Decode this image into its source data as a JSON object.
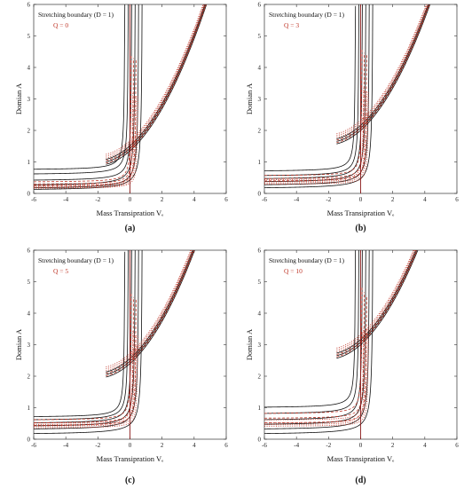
{
  "chart_data": [
    {
      "type": "line",
      "panel_label": "(a)",
      "annotation": "Stretching boundary (D = 1)",
      "q_label": "Q = 0",
      "xlabel": "Mass Transipration Vₑ",
      "ylabel": "Domian A",
      "xlim": [
        -6,
        6
      ],
      "ylim": [
        0,
        6
      ],
      "xticks": [
        "-6",
        "-4",
        "-2",
        "0",
        "2",
        "4",
        "6"
      ],
      "yticks": [
        "0",
        "1",
        "2",
        "3",
        "4",
        "5",
        "6"
      ],
      "vertical_line_x": 0,
      "knot": 1.35,
      "lower_branch_start": [
        0.8,
        0.65,
        0.45,
        0.3,
        0.2,
        0.15
      ],
      "red_dashed_starts": [
        0.35,
        0.28,
        0.22
      ],
      "red_dotted_starts": [
        0.25,
        0.2,
        0.17,
        0.15
      ]
    },
    {
      "type": "line",
      "panel_label": "(b)",
      "annotation": "Stretching boundary (D = 1)",
      "q_label": "Q = 3",
      "xlabel": "Mass Transipration Vₑ",
      "ylabel": "Domian A",
      "xlim": [
        -6,
        6
      ],
      "ylim": [
        0,
        6
      ],
      "xticks": [
        "-6",
        "-4",
        "-2",
        "0",
        "2",
        "4",
        "6"
      ],
      "yticks": [
        "0",
        "1",
        "2",
        "3",
        "4",
        "5",
        "6"
      ],
      "vertical_line_x": 0,
      "knot": 2.0,
      "lower_branch_start": [
        0.75,
        0.6,
        0.5,
        0.4,
        0.3,
        0.2
      ],
      "red_dashed_starts": [
        0.55,
        0.45,
        0.38
      ],
      "red_dotted_starts": [
        0.42,
        0.36,
        0.32,
        0.28
      ]
    },
    {
      "type": "line",
      "panel_label": "(c)",
      "annotation": "Stretching boundary (D = 1)",
      "q_label": "Q = 5",
      "xlabel": "Mass Transipration Vₑ",
      "ylabel": "Domian A",
      "xlim": [
        -6,
        6
      ],
      "ylim": [
        0,
        6
      ],
      "xticks": [
        "-6",
        "-4",
        "-2",
        "0",
        "2",
        "4",
        "6"
      ],
      "yticks": [
        "0",
        "1",
        "2",
        "3",
        "4",
        "5",
        "6"
      ],
      "vertical_line_x": 0,
      "knot": 2.4,
      "lower_branch_start": [
        0.75,
        0.65,
        0.55,
        0.45,
        0.35,
        0.2
      ],
      "red_dashed_starts": [
        0.6,
        0.5,
        0.42
      ],
      "red_dotted_starts": [
        0.5,
        0.45,
        0.4,
        0.35
      ]
    },
    {
      "type": "line",
      "panel_label": "(d)",
      "annotation": "Stretching boundary (D = 1)",
      "q_label": "Q = 10",
      "xlabel": "Mass Transipration Vₑ",
      "ylabel": "Domian A",
      "xlim": [
        -6,
        6
      ],
      "ylim": [
        0,
        6
      ],
      "xticks": [
        "-6",
        "-4",
        "-2",
        "0",
        "2",
        "4",
        "6"
      ],
      "yticks": [
        "0",
        "1",
        "2",
        "3",
        "4",
        "5",
        "6"
      ],
      "vertical_line_x": 0,
      "knot": 3.0,
      "lower_branch_start": [
        1.05,
        0.85,
        0.65,
        0.5,
        0.35,
        0.2
      ],
      "red_dashed_starts": [
        0.8,
        0.65,
        0.5
      ],
      "red_dotted_starts": [
        0.6,
        0.5,
        0.45,
        0.4
      ]
    }
  ]
}
